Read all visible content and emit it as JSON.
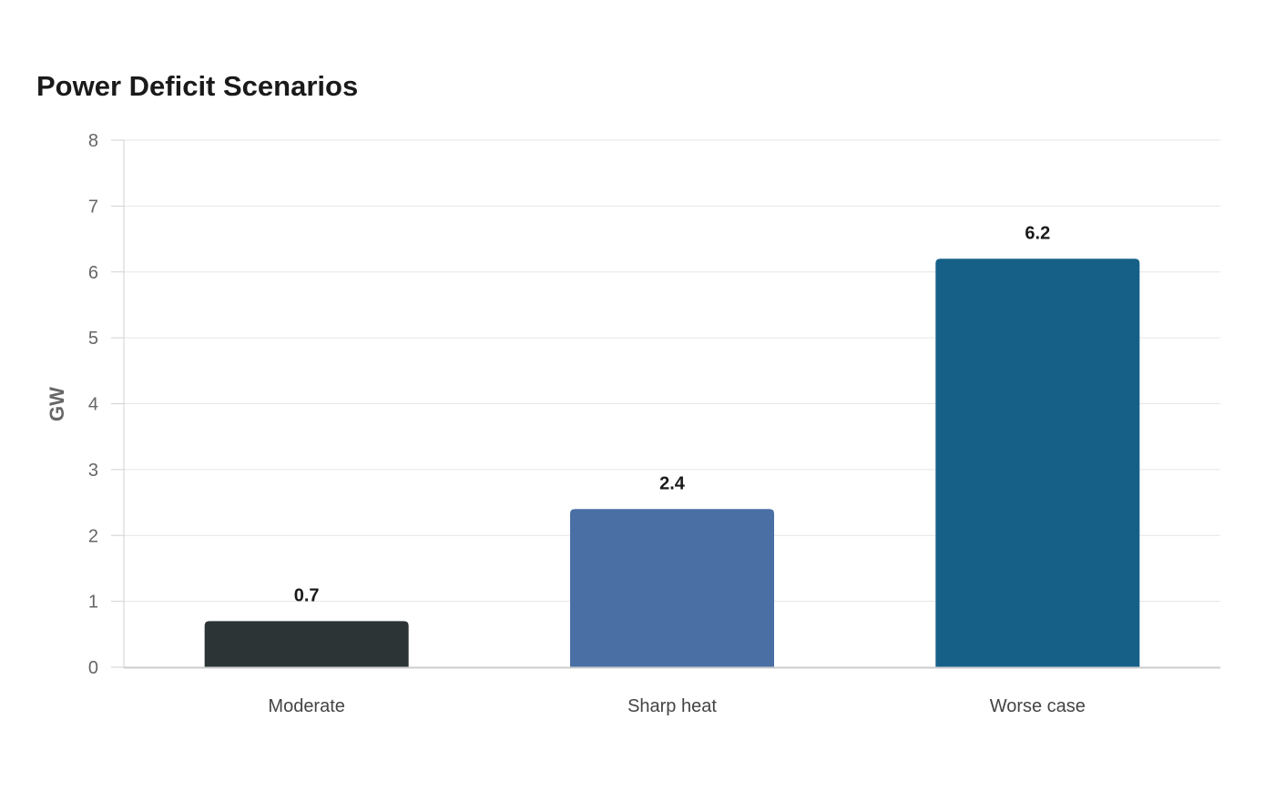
{
  "chart_data": {
    "type": "bar",
    "title": "Power Deficit Scenarios",
    "xlabel": "",
    "ylabel": "GW",
    "categories": [
      "Moderate",
      "Sharp heat",
      "Worse case"
    ],
    "values": [
      0.7,
      2.4,
      6.2
    ],
    "colors": [
      "#2d3436",
      "#4a6fa5",
      "#166088"
    ],
    "ylim": [
      0,
      8
    ],
    "yticks": [
      0,
      1,
      2,
      3,
      4,
      5,
      6,
      7,
      8
    ],
    "grid": true,
    "legend": "none"
  }
}
